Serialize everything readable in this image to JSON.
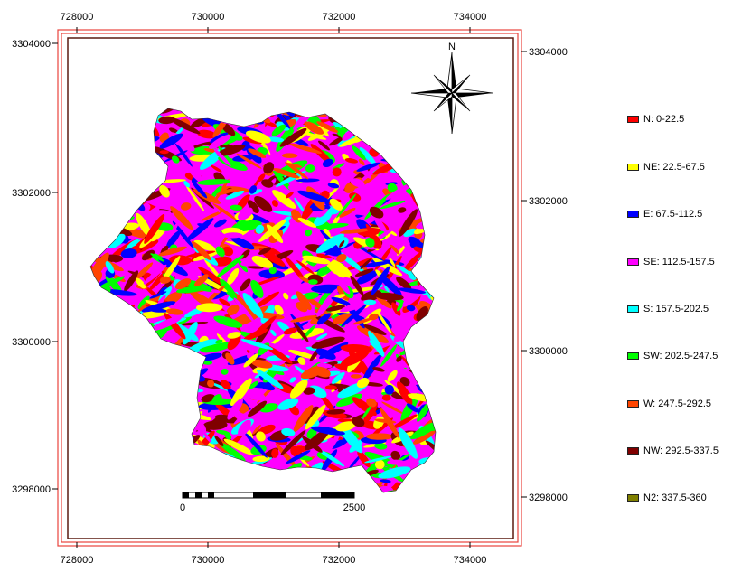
{
  "map": {
    "top_ticks": [
      "728000",
      "730000",
      "732000",
      "734000"
    ],
    "bottom_ticks": [
      "728000",
      "730000",
      "732000",
      "734000"
    ],
    "left_ticks": [
      "3304000",
      "3302000",
      "3300000",
      "3298000"
    ],
    "right_ticks": [
      "3304000",
      "3302000",
      "3300000",
      "3298000"
    ],
    "north_label": "N",
    "scale_bar": {
      "start_label": "0",
      "end_label": "2500"
    },
    "frame_color": "#e8443c",
    "inner_frame_color": "#5a1a10"
  },
  "legend": {
    "items": [
      {
        "label": "N: 0-22.5",
        "color": "#ff0000"
      },
      {
        "label": "NE: 22.5-67.5",
        "color": "#ffff00"
      },
      {
        "label": "E: 67.5-112.5",
        "color": "#0000ff"
      },
      {
        "label": "SE: 112.5-157.5",
        "color": "#ff00ff"
      },
      {
        "label": "S: 157.5-202.5",
        "color": "#00ffff"
      },
      {
        "label": "SW: 202.5-247.5",
        "color": "#00ff00"
      },
      {
        "label": "W: 247.5-292.5",
        "color": "#ff4500"
      },
      {
        "label": "NW: 292.5-337.5",
        "color": "#800000"
      },
      {
        "label": "N2: 337.5-360",
        "color": "#808000"
      }
    ]
  }
}
